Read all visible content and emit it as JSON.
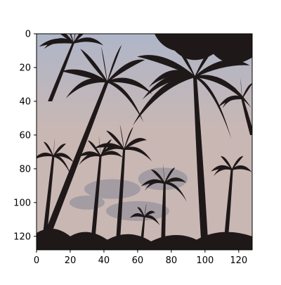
{
  "chart_data": {
    "type": "image",
    "image_size": [
      128,
      128
    ],
    "xlim": [
      0,
      128
    ],
    "ylim": [
      128,
      0
    ],
    "origin": "upper",
    "x_ticks": [
      0,
      20,
      40,
      60,
      80,
      100,
      120
    ],
    "y_ticks": [
      0,
      20,
      40,
      60,
      80,
      100,
      120
    ],
    "x_tick_labels": [
      "0",
      "20",
      "40",
      "60",
      "80",
      "100",
      "120"
    ],
    "y_tick_labels": [
      "0",
      "20",
      "40",
      "60",
      "80",
      "100",
      "120"
    ],
    "title": "",
    "xlabel": "",
    "ylabel": "",
    "grid": false,
    "colors": {
      "sky": "#c9b7b4",
      "sky_top": "#aeb6c8",
      "cloud": "#8f8e98",
      "silhouette": "#1f1818",
      "axis": "#000000"
    }
  }
}
